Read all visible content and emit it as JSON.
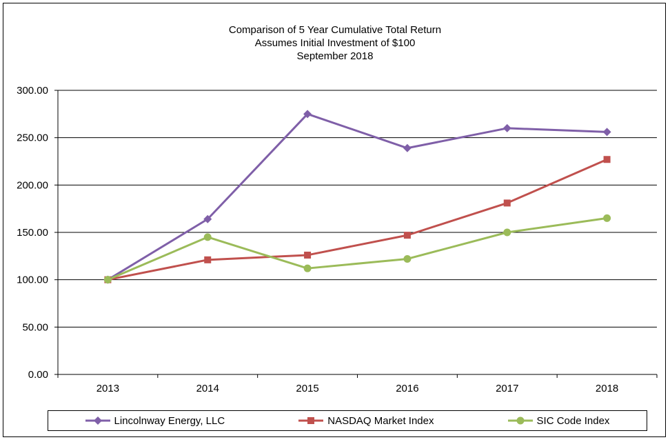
{
  "chart_data": {
    "type": "line",
    "title": "Comparison of 5 Year Cumulative Total Return",
    "subtitle_lines": [
      "Assumes Initial Investment of $100",
      "September 2018"
    ],
    "xlabel": "",
    "ylabel": "",
    "categories": [
      "2013",
      "2014",
      "2015",
      "2016",
      "2017",
      "2018"
    ],
    "ylim": [
      0,
      300
    ],
    "yticks": [
      "0.00",
      "50.00",
      "100.00",
      "150.00",
      "200.00",
      "250.00",
      "300.00"
    ],
    "grid": true,
    "legend_position": "bottom",
    "series": [
      {
        "name": "Lincolnway Energy, LLC",
        "color": "#7f5fa8",
        "marker": "diamond",
        "values": [
          100,
          164,
          275,
          239,
          260,
          256
        ]
      },
      {
        "name": "NASDAQ Market Index",
        "color": "#c0504d",
        "marker": "square",
        "values": [
          100,
          121,
          126,
          147,
          181,
          227
        ]
      },
      {
        "name": "SIC Code Index",
        "color": "#9bbb59",
        "marker": "circle",
        "values": [
          100,
          145,
          112,
          122,
          150,
          165
        ]
      }
    ]
  }
}
